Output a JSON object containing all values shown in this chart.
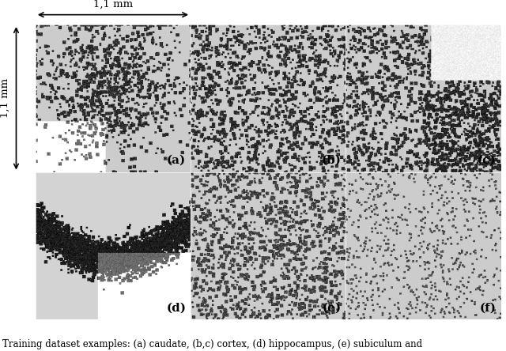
{
  "title": "",
  "caption": "Training dataset examples: (a) caudate, (b,c) cortex, (d) hippocampus, (e) subiculum and",
  "figsize": [
    6.4,
    4.44
  ],
  "dpi": 100,
  "background_color": "#ffffff",
  "grid_rows": 2,
  "grid_cols": 3,
  "panel_labels": [
    "(a)",
    "(b)",
    "(c)",
    "(d)",
    "(e)",
    "(f)"
  ],
  "h_arrow_text": "1,1 mm",
  "v_arrow_text": "1,1 mm",
  "caption_fontsize": 8.5,
  "label_fontsize": 11,
  "arrow_fontsize": 9.5
}
